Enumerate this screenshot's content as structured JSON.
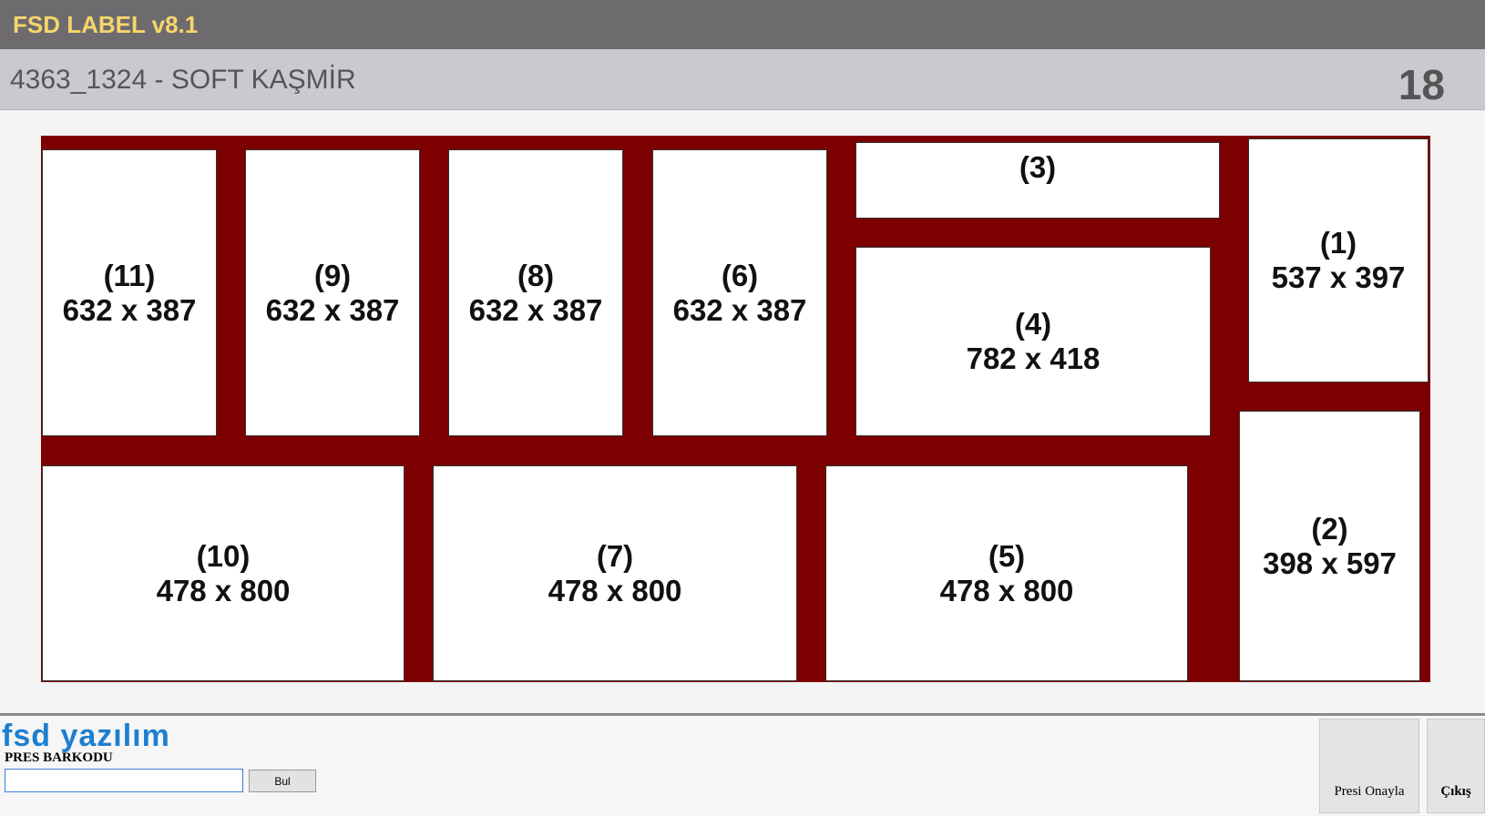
{
  "header": {
    "title": "FSD LABEL v8.1",
    "order": "4363_1324 - SOFT KAŞMİR",
    "count": "18"
  },
  "pieces": [
    {
      "id": "(11)",
      "size": "632 x 387"
    },
    {
      "id": "(9)",
      "size": "632 x 387"
    },
    {
      "id": "(8)",
      "size": "632 x 387"
    },
    {
      "id": "(6)",
      "size": "632 x 387"
    },
    {
      "id": "(3)"
    },
    {
      "id": "(4)",
      "size": "782 x 418"
    },
    {
      "id": "(1)",
      "size": "537 x 397"
    },
    {
      "id": "(2)",
      "size": "398 x 597"
    },
    {
      "id": "(10)",
      "size": "478 x 800"
    },
    {
      "id": "(7)",
      "size": "478 x 800"
    },
    {
      "id": "(5)",
      "size": "478 x 800"
    }
  ],
  "footer": {
    "logo": "fsd yazılım",
    "barcode_label": "PRES BARKODU",
    "search_button": "Bul",
    "confirm_button": "Presi Onayla",
    "exit_button": "Çıkış"
  }
}
